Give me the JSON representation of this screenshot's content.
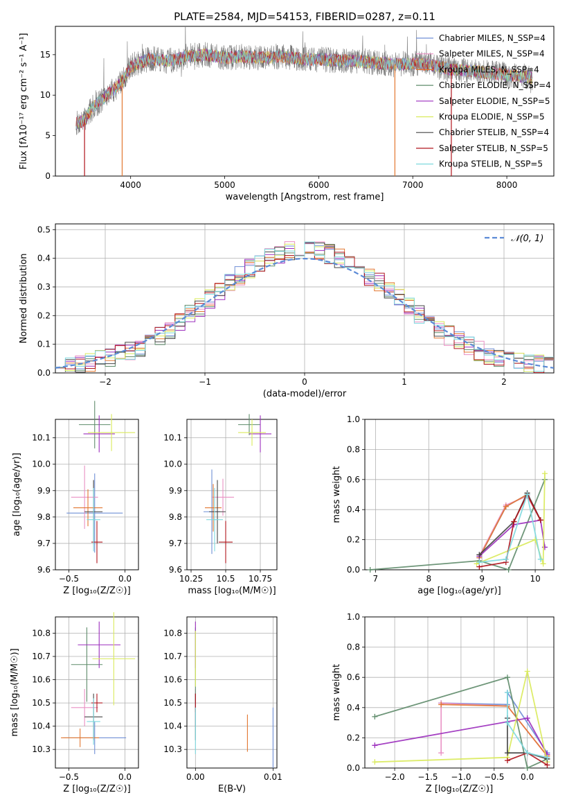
{
  "figure": {
    "title": "PLATE=2584, MJD=54153, FIBERID=0287, z=0.11"
  },
  "colors": {
    "Chabrier MILES": "#6f8fd6",
    "Salpeter MILES": "#e98fc3",
    "Kroupa MILES": "#e2762f",
    "Chabrier ELODIE": "#5e8b6a",
    "Salpeter ELODIE": "#9b2dbd",
    "Kroupa ELODIE": "#d9ea5a",
    "Chabrier STELIB": "#444444",
    "Salpeter STELIB": "#b0141c",
    "Kroupa STELIB": "#7dd8de",
    "grid": "#b0b0b0",
    "normal_curve": "#5b8ad6"
  },
  "chart_data": [
    {
      "id": "spectrum",
      "type": "line",
      "xlabel": "wavelength [Angstrom, rest frame]",
      "ylabel": "Flux [fλ10⁻¹⁷ erg cm⁻² s⁻¹ A⁻¹]",
      "xlim": [
        3200,
        8500
      ],
      "ylim": [
        0,
        18.5
      ],
      "xticks": [
        4000,
        5000,
        6000,
        7000,
        8000
      ],
      "yticks": [
        0,
        5,
        10,
        15
      ],
      "grid": false,
      "legend_position": "upper-right",
      "legend": [
        "Chabrier MILES, N_SSP=4",
        "Salpeter MILES, N_SSP=4",
        "Kroupa MILES, N_SSP=4",
        "Chabrier ELODIE, N_SSP=4",
        "Salpeter ELODIE, N_SSP=5",
        "Kroupa ELODIE, N_SSP=5",
        "Chabrier STELIB, N_SSP=4",
        "Salpeter STELIB, N_SSP=5",
        "Kroupa STELIB, N_SSP=5"
      ],
      "continuum": [
        [
          3420,
          6.5
        ],
        [
          3500,
          6.8
        ],
        [
          3600,
          8.5
        ],
        [
          3700,
          9.5
        ],
        [
          3800,
          10.5
        ],
        [
          3900,
          11.5
        ],
        [
          4000,
          13.5
        ],
        [
          4200,
          14.5
        ],
        [
          4400,
          14.2
        ],
        [
          4600,
          14.8
        ],
        [
          4800,
          15.0
        ],
        [
          5000,
          14.6
        ],
        [
          5200,
          14.8
        ],
        [
          5400,
          14.6
        ],
        [
          5600,
          14.8
        ],
        [
          5800,
          14.5
        ],
        [
          6000,
          14.4
        ],
        [
          6200,
          14.3
        ],
        [
          6400,
          14.2
        ],
        [
          6600,
          14.0
        ],
        [
          6800,
          13.8
        ],
        [
          7000,
          13.9
        ],
        [
          7200,
          13.7
        ],
        [
          7400,
          13.2
        ],
        [
          7600,
          13.0
        ],
        [
          7800,
          12.8
        ],
        [
          8000,
          12.5
        ],
        [
          8270,
          12.2
        ]
      ],
      "drops": [
        {
          "x": 3510,
          "series": "Salpeter STELIB"
        },
        {
          "x": 3910,
          "series": "Kroupa MILES"
        },
        {
          "x": 6810,
          "series": "Kroupa MILES"
        },
        {
          "x": 7410,
          "series": "Salpeter STELIB"
        }
      ]
    },
    {
      "id": "residuals",
      "type": "line",
      "xlabel": "(data-model)/error",
      "ylabel": "Normed distribution",
      "xlim": [
        -2.5,
        2.5
      ],
      "ylim": [
        0,
        0.52
      ],
      "xticks": [
        -2,
        -1,
        0,
        1,
        2
      ],
      "yticks": [
        0.0,
        0.1,
        0.2,
        0.3,
        0.4,
        0.5
      ],
      "grid": true,
      "legend_position": "upper-right",
      "legend": [
        "𝒩(0, 1)"
      ],
      "bin_width": 0.1,
      "normal_pdf": {
        "mean": 0,
        "sigma": 1
      }
    },
    {
      "id": "age_vs_Z",
      "type": "scatter",
      "xlabel": "Z [log₁₀(Z/Z☉)]",
      "ylabel": "age  [log₁₀(age/yr)]",
      "xlim": [
        -0.62,
        0.12
      ],
      "ylim": [
        9.6,
        10.17
      ],
      "xticks": [
        -0.5,
        0.0
      ],
      "xticklabels": [
        "−0.5",
        "0.0"
      ],
      "yticks": [
        9.6,
        9.7,
        9.8,
        9.9,
        10.0,
        10.1
      ],
      "grid": true,
      "points": [
        {
          "series": "Chabrier MILES",
          "x": -0.27,
          "xerr": 0.25,
          "y": 9.815,
          "yerr": 0.15
        },
        {
          "series": "Salpeter MILES",
          "x": -0.36,
          "xerr": 0.12,
          "y": 9.875,
          "yerr": 0.12
        },
        {
          "series": "Kroupa MILES",
          "x": -0.33,
          "xerr": 0.13,
          "y": 9.835,
          "yerr": 0.07
        },
        {
          "series": "Chabrier ELODIE",
          "x": -0.27,
          "xerr": 0.14,
          "y": 10.15,
          "yerr": 0.09
        },
        {
          "series": "Salpeter ELODIE",
          "x": -0.23,
          "xerr": 0.14,
          "y": 10.115,
          "yerr": 0.07
        },
        {
          "series": "Kroupa ELODIE",
          "x": -0.12,
          "xerr": 0.21,
          "y": 10.12,
          "yerr": 0.07
        },
        {
          "series": "Chabrier STELIB",
          "x": -0.28,
          "xerr": 0.08,
          "y": 9.82,
          "yerr": 0.12
        },
        {
          "series": "Salpeter STELIB",
          "x": -0.25,
          "xerr": 0.05,
          "y": 9.705,
          "yerr": 0.08
        },
        {
          "series": "Kroupa STELIB",
          "x": -0.28,
          "xerr": 0.06,
          "y": 9.79,
          "yerr": 0.12
        }
      ]
    },
    {
      "id": "age_vs_mass",
      "type": "scatter",
      "xlabel": "mass [log₁₀(M/M☉)]",
      "ylabel": "",
      "xlim": [
        10.22,
        10.87
      ],
      "ylim": [
        9.6,
        10.17
      ],
      "xticks": [
        10.25,
        10.5,
        10.75
      ],
      "yticks": [
        9.6,
        9.7,
        9.8,
        9.9,
        10.0,
        10.1
      ],
      "grid": true,
      "points": [
        {
          "series": "Chabrier MILES",
          "x": 10.4,
          "xerr": 0.06,
          "y": 9.82,
          "yerr": 0.16
        },
        {
          "series": "Salpeter MILES",
          "x": 10.48,
          "xerr": 0.08,
          "y": 9.875,
          "yerr": 0.07
        },
        {
          "series": "Kroupa MILES",
          "x": 10.41,
          "xerr": 0.06,
          "y": 9.835,
          "yerr": 0.09
        },
        {
          "series": "Chabrier ELODIE",
          "x": 10.67,
          "xerr": 0.08,
          "y": 10.15,
          "yerr": 0.04
        },
        {
          "series": "Salpeter ELODIE",
          "x": 10.75,
          "xerr": 0.08,
          "y": 10.115,
          "yerr": 0.07
        },
        {
          "series": "Kroupa ELODIE",
          "x": 10.69,
          "xerr": 0.1,
          "y": 10.12,
          "yerr": 0.05
        },
        {
          "series": "Chabrier STELIB",
          "x": 10.44,
          "xerr": 0.06,
          "y": 9.82,
          "yerr": 0.12
        },
        {
          "series": "Salpeter STELIB",
          "x": 10.5,
          "xerr": 0.05,
          "y": 9.705,
          "yerr": 0.08
        },
        {
          "series": "Kroupa STELIB",
          "x": 10.42,
          "xerr": 0.06,
          "y": 9.79,
          "yerr": 0.12
        }
      ]
    },
    {
      "id": "weight_vs_age",
      "type": "line",
      "xlabel": "age  [log₁₀(age/yr)]",
      "ylabel": "mass weight",
      "xlim": [
        6.8,
        10.35
      ],
      "ylim": [
        0,
        1.0
      ],
      "xticks": [
        7,
        8,
        9,
        10
      ],
      "yticks": [
        0.0,
        0.2,
        0.4,
        0.6,
        0.8,
        1.0
      ],
      "grid": true,
      "series": [
        {
          "name": "Chabrier MILES",
          "points": [
            [
              8.95,
              0.08
            ],
            [
              9.45,
              0.42
            ],
            [
              9.85,
              0.5
            ],
            [
              10.1,
              0.33
            ]
          ]
        },
        {
          "name": "Salpeter MILES",
          "points": [
            [
              8.95,
              0.09
            ],
            [
              9.45,
              0.43
            ],
            [
              9.85,
              0.49
            ],
            [
              10.1,
              0.33
            ]
          ]
        },
        {
          "name": "Kroupa MILES",
          "points": [
            [
              8.95,
              0.08
            ],
            [
              9.45,
              0.42
            ],
            [
              9.85,
              0.5
            ],
            [
              10.1,
              0.33
            ]
          ]
        },
        {
          "name": "Chabrier ELODIE",
          "points": [
            [
              6.9,
              0.0
            ],
            [
              8.95,
              0.06
            ],
            [
              9.5,
              0.0
            ],
            [
              10.18,
              0.6
            ]
          ]
        },
        {
          "name": "Salpeter ELODIE",
          "points": [
            [
              8.95,
              0.09
            ],
            [
              9.6,
              0.3
            ],
            [
              10.1,
              0.33
            ],
            [
              10.18,
              0.15
            ]
          ]
        },
        {
          "name": "Kroupa ELODIE",
          "points": [
            [
              8.9,
              0.04
            ],
            [
              10.0,
              0.2
            ],
            [
              10.15,
              0.04
            ],
            [
              10.18,
              0.64
            ]
          ]
        },
        {
          "name": "Chabrier STELIB",
          "points": [
            [
              8.95,
              0.1
            ],
            [
              9.6,
              0.32
            ],
            [
              9.85,
              0.51
            ],
            [
              10.1,
              0.33
            ]
          ]
        },
        {
          "name": "Salpeter STELIB",
          "points": [
            [
              8.95,
              0.02
            ],
            [
              9.45,
              0.05
            ],
            [
              9.6,
              0.32
            ],
            [
              9.85,
              0.5
            ],
            [
              10.1,
              0.33
            ]
          ]
        },
        {
          "name": "Kroupa STELIB",
          "points": [
            [
              8.95,
              0.05
            ],
            [
              9.45,
              0.07
            ],
            [
              9.85,
              0.5
            ],
            [
              10.1,
              0.07
            ]
          ]
        }
      ]
    },
    {
      "id": "mass_vs_Z",
      "type": "scatter",
      "xlabel": "Z [log₁₀(Z/Z☉)]",
      "ylabel": "mass [log₁₀(M/M☉)]",
      "xlim": [
        -0.62,
        0.12
      ],
      "ylim": [
        10.22,
        10.87
      ],
      "xticks": [
        -0.5,
        0.0
      ],
      "xticklabels": [
        "−0.5",
        "0.0"
      ],
      "yticks": [
        10.3,
        10.4,
        10.5,
        10.6,
        10.7,
        10.8
      ],
      "grid": true,
      "points": [
        {
          "series": "Chabrier MILES",
          "x": -0.27,
          "xerr": 0.28,
          "y": 10.35,
          "yerr": 0.07
        },
        {
          "series": "Salpeter MILES",
          "x": -0.36,
          "xerr": 0.12,
          "y": 10.48,
          "yerr": 0.08
        },
        {
          "series": "Kroupa MILES",
          "x": -0.4,
          "xerr": 0.17,
          "y": 10.35,
          "yerr": 0.04
        },
        {
          "series": "Chabrier ELODIE",
          "x": -0.34,
          "xerr": 0.14,
          "y": 10.665,
          "yerr": 0.16
        },
        {
          "series": "Salpeter ELODIE",
          "x": -0.23,
          "xerr": 0.19,
          "y": 10.75,
          "yerr": 0.1
        },
        {
          "series": "Kroupa ELODIE",
          "x": -0.1,
          "xerr": 0.19,
          "y": 10.69,
          "yerr": 0.2
        },
        {
          "series": "Chabrier STELIB",
          "x": -0.28,
          "xerr": 0.08,
          "y": 10.44,
          "yerr": 0.1
        },
        {
          "series": "Salpeter STELIB",
          "x": -0.25,
          "xerr": 0.05,
          "y": 10.5,
          "yerr": 0.04
        },
        {
          "series": "Kroupa STELIB",
          "x": -0.28,
          "xerr": 0.06,
          "y": 10.42,
          "yerr": 0.1
        }
      ]
    },
    {
      "id": "mass_vs_ebv",
      "type": "scatter",
      "xlabel": "E(B-V)",
      "ylabel": "",
      "xlim": [
        -0.0011,
        0.0105
      ],
      "ylim": [
        10.22,
        10.87
      ],
      "xticks": [
        0.0,
        0.01
      ],
      "xticklabels": [
        "0.00",
        "0.01"
      ],
      "yticks": [
        10.3,
        10.4,
        10.5,
        10.6,
        10.7,
        10.8
      ],
      "grid": true,
      "points": [
        {
          "series": "Chabrier MILES",
          "x": 0.01,
          "xerr": 0.0,
          "y": 10.35,
          "yerr": 0.13
        },
        {
          "series": "Salpeter MILES",
          "x": 0.0,
          "xerr": 0.0,
          "y": 10.48,
          "yerr": 0.08
        },
        {
          "series": "Kroupa MILES",
          "x": 0.0067,
          "xerr": 0.0,
          "y": 10.37,
          "yerr": 0.08
        },
        {
          "series": "Chabrier ELODIE",
          "x": 0.0,
          "xerr": 0.0,
          "y": 10.665,
          "yerr": 0.16
        },
        {
          "series": "Salpeter ELODIE",
          "x": 0.0,
          "xerr": 0.0,
          "y": 10.75,
          "yerr": 0.1
        },
        {
          "series": "Kroupa ELODIE",
          "x": 0.0,
          "xerr": 0.0,
          "y": 10.69,
          "yerr": 0.12
        },
        {
          "series": "Chabrier STELIB",
          "x": 0.0,
          "xerr": 0.0,
          "y": 10.44,
          "yerr": 0.1
        },
        {
          "series": "Salpeter STELIB",
          "x": 0.0,
          "xerr": 0.0,
          "y": 10.5,
          "yerr": 0.04
        },
        {
          "series": "Kroupa STELIB",
          "x": 0.0,
          "xerr": 0.0,
          "y": 10.38,
          "yerr": 0.1
        }
      ]
    },
    {
      "id": "weight_vs_Z",
      "type": "line",
      "xlabel": "Z [log₁₀(Z/Z☉)]",
      "ylabel": "mass weight",
      "xlim": [
        -2.45,
        0.4
      ],
      "ylim": [
        0,
        1.0
      ],
      "xticks": [
        -2.0,
        -1.5,
        -1.0,
        -0.5,
        0.0
      ],
      "xticklabels": [
        "−2.0",
        "−1.5",
        "−1.0",
        "−0.5",
        "0.0"
      ],
      "yticks": [
        0.0,
        0.2,
        0.4,
        0.6,
        0.8,
        1.0
      ],
      "grid": true,
      "series": [
        {
          "name": "Chabrier MILES",
          "points": [
            [
              -1.3,
              0.43
            ],
            [
              -0.3,
              0.42
            ],
            [
              -0.3,
              0.5
            ],
            [
              0.3,
              0.1
            ]
          ]
        },
        {
          "name": "Salpeter MILES",
          "points": [
            [
              -1.3,
              0.1
            ],
            [
              -1.3,
              0.43
            ],
            [
              -0.3,
              0.41
            ],
            [
              0.3,
              0.08
            ]
          ]
        },
        {
          "name": "Kroupa MILES",
          "points": [
            [
              -1.3,
              0.42
            ],
            [
              -0.3,
              0.41
            ],
            [
              0.3,
              0.08
            ]
          ]
        },
        {
          "name": "Chabrier ELODIE",
          "points": [
            [
              -2.3,
              0.34
            ],
            [
              -0.3,
              0.6
            ],
            [
              0.0,
              0.0
            ],
            [
              0.3,
              0.06
            ]
          ]
        },
        {
          "name": "Salpeter ELODIE",
          "points": [
            [
              -2.3,
              0.15
            ],
            [
              0.0,
              0.33
            ],
            [
              0.3,
              0.09
            ]
          ]
        },
        {
          "name": "Kroupa ELODIE",
          "points": [
            [
              -2.3,
              0.04
            ],
            [
              -0.3,
              0.07
            ],
            [
              0.0,
              0.64
            ],
            [
              0.3,
              0.04
            ]
          ]
        },
        {
          "name": "Chabrier STELIB",
          "points": [
            [
              -0.3,
              0.33
            ],
            [
              -0.3,
              0.1
            ],
            [
              0.0,
              0.1
            ],
            [
              0.3,
              0.06
            ]
          ]
        },
        {
          "name": "Salpeter STELIB",
          "points": [
            [
              -0.3,
              0.05
            ],
            [
              0.0,
              0.1
            ],
            [
              0.3,
              0.02
            ]
          ]
        },
        {
          "name": "Kroupa STELIB",
          "points": [
            [
              -0.3,
              0.5
            ],
            [
              -0.3,
              0.3
            ],
            [
              0.0,
              0.1
            ],
            [
              0.3,
              0.07
            ]
          ]
        }
      ]
    }
  ]
}
